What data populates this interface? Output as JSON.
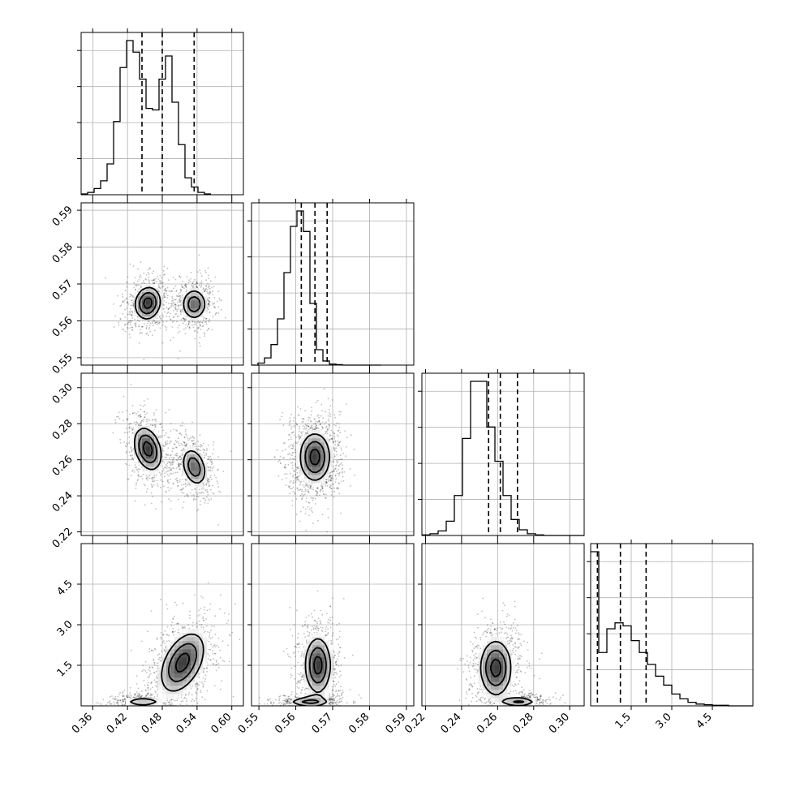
{
  "chart_data": {
    "type": "corner",
    "grid": true,
    "dimensions": [
      {
        "range": [
          0.34,
          0.62
        ],
        "ticks": [
          "0.36",
          "0.42",
          "0.48",
          "0.54",
          "0.60"
        ],
        "tick_values": [
          0.36,
          0.42,
          0.48,
          0.54,
          0.6
        ],
        "quantiles": [
          0.445,
          0.48,
          0.535
        ]
      },
      {
        "range": [
          0.548,
          0.592
        ],
        "ticks": [
          "0.55",
          "0.56",
          "0.57",
          "0.58",
          "0.59"
        ],
        "tick_values": [
          0.55,
          0.56,
          0.57,
          0.58,
          0.59
        ],
        "quantiles": [
          0.5615,
          0.5652,
          0.5685
        ]
      },
      {
        "range": [
          0.218,
          0.308
        ],
        "ticks": [
          "0.22",
          "0.24",
          "0.26",
          "0.28",
          "0.30"
        ],
        "tick_values": [
          0.22,
          0.24,
          0.26,
          0.28,
          0.3
        ],
        "quantiles": [
          0.255,
          0.2615,
          0.271
        ]
      },
      {
        "range": [
          0.0,
          6.0
        ],
        "ticks": [
          "1.5",
          "3.0",
          "4.5"
        ],
        "tick_values": [
          1.5,
          3.0,
          4.5
        ],
        "quantiles": [
          0.25,
          1.1,
          2.05
        ]
      }
    ],
    "histograms": [
      {
        "edges_start": 0.34,
        "bin_width": 0.0112,
        "counts": [
          1,
          3,
          8,
          18,
          40,
          95,
          165,
          200,
          185,
          150,
          112,
          110,
          150,
          180,
          120,
          65,
          22,
          10,
          3,
          1
        ]
      },
      {
        "edges_start": 0.548,
        "bin_width": 0.00176,
        "counts": [
          0,
          4,
          14,
          40,
          90,
          180,
          270,
          300,
          260,
          120,
          30,
          8,
          2,
          1,
          0,
          0,
          0,
          0,
          0,
          0
        ]
      },
      {
        "edges_start": 0.218,
        "bin_width": 0.0045,
        "counts": [
          1,
          3,
          8,
          25,
          70,
          170,
          270,
          270,
          190,
          130,
          70,
          28,
          10,
          3,
          1,
          0,
          0,
          0,
          0,
          0
        ]
      },
      {
        "edges_start": 0.0,
        "bin_width": 0.3,
        "counts": [
          260,
          90,
          130,
          140,
          135,
          110,
          90,
          70,
          50,
          35,
          20,
          12,
          6,
          3,
          2,
          1,
          1,
          0,
          0,
          0
        ]
      }
    ],
    "contour_levels": [
      0.5,
      1.0,
      1.5
    ],
    "pairs": [
      {
        "row": 1,
        "col": 0,
        "components": [
          {
            "mean": [
              0.455,
              0.5648
            ],
            "sd": [
              0.014,
              0.0028
            ],
            "corr": 0.1,
            "weight": 0.55
          },
          {
            "mean": [
              0.535,
              0.5645
            ],
            "sd": [
              0.013,
              0.0026
            ],
            "corr": 0.0,
            "weight": 0.45
          }
        ]
      },
      {
        "row": 2,
        "col": 0,
        "components": [
          {
            "mean": [
              0.455,
              0.266
            ],
            "sd": [
              0.015,
              0.0075
            ],
            "corr": -0.3,
            "weight": 0.55
          },
          {
            "mean": [
              0.535,
              0.256
            ],
            "sd": [
              0.013,
              0.0065
            ],
            "corr": -0.3,
            "weight": 0.45
          }
        ]
      },
      {
        "row": 2,
        "col": 1,
        "components": [
          {
            "mean": [
              0.5652,
              0.2615
            ],
            "sd": [
              0.0026,
              0.0085
            ],
            "corr": 0.0,
            "weight": 1.0
          }
        ]
      },
      {
        "row": 3,
        "col": 0,
        "components": [
          {
            "mean": [
              0.445,
              0.15
            ],
            "sd": [
              0.02,
              0.12
            ],
            "corr": 0.0,
            "weight": 0.35
          },
          {
            "mean": [
              0.515,
              1.6
            ],
            "sd": [
              0.024,
              0.7
            ],
            "corr": 0.45,
            "weight": 0.65
          }
        ]
      },
      {
        "row": 3,
        "col": 1,
        "components": [
          {
            "mean": [
              0.5635,
              0.15
            ],
            "sd": [
              0.0035,
              0.12
            ],
            "corr": 0.0,
            "weight": 0.4
          },
          {
            "mean": [
              0.566,
              1.5
            ],
            "sd": [
              0.0022,
              0.65
            ],
            "corr": 0.0,
            "weight": 0.6
          }
        ]
      },
      {
        "row": 3,
        "col": 2,
        "components": [
          {
            "mean": [
              0.272,
              0.15
            ],
            "sd": [
              0.006,
              0.12
            ],
            "corr": 0.0,
            "weight": 0.4
          },
          {
            "mean": [
              0.259,
              1.4
            ],
            "sd": [
              0.0055,
              0.65
            ],
            "corr": 0.0,
            "weight": 0.6
          }
        ]
      }
    ]
  }
}
